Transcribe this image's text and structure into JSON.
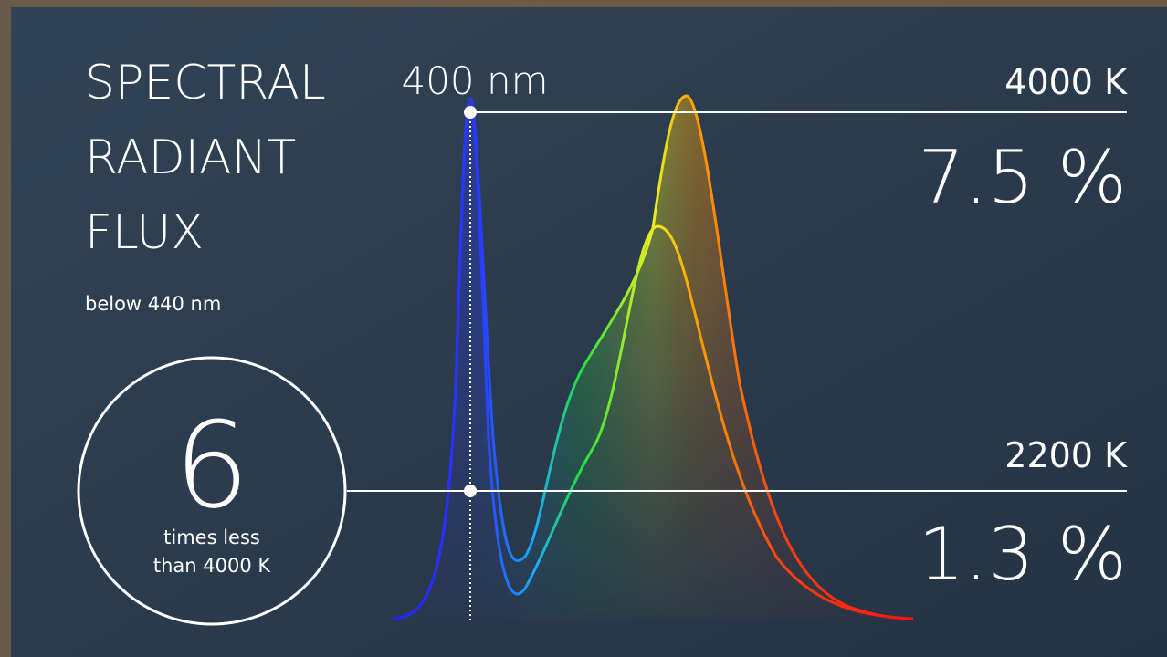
{
  "title": {
    "lines": [
      "SPECTRAL",
      "RADIANT",
      "FLUX"
    ]
  },
  "subtitle": "below 440 nm",
  "marker": {
    "label": "400 nm"
  },
  "rows": [
    {
      "label": "4000 K",
      "value": "7.5 %"
    },
    {
      "label": "2200 K",
      "value": "1.3 %"
    }
  ],
  "comparison": {
    "number": "6",
    "caption": [
      "times less",
      "than 4000 K"
    ]
  }
}
